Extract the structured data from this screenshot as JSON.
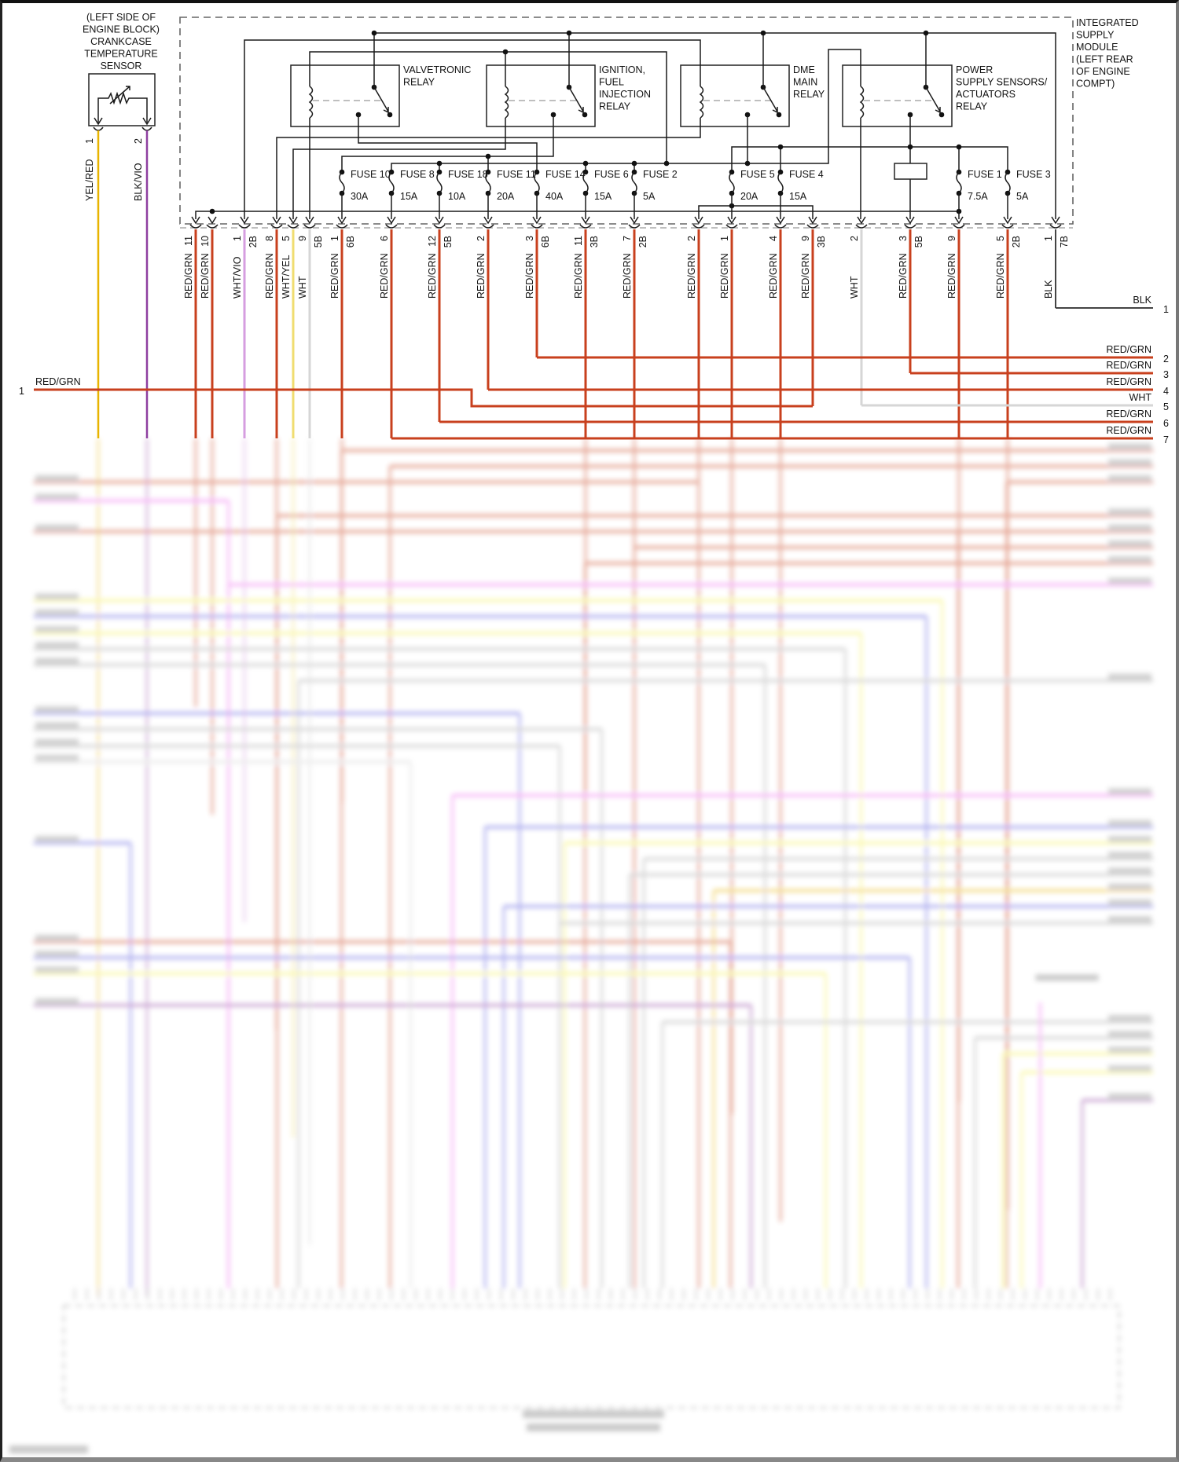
{
  "sensor": {
    "label_lines": [
      "(LEFT SIDE OF",
      "ENGINE BLOCK)",
      "CRANKCASE",
      "TEMPERATURE",
      "SENSOR"
    ],
    "pins": [
      {
        "num": "1",
        "wire": "YEL/RED"
      },
      {
        "num": "2",
        "wire": "BLK/VIO"
      }
    ]
  },
  "module": {
    "label_lines": [
      "INTEGRATED",
      "SUPPLY",
      "MODULE",
      "(LEFT REAR",
      "OF ENGINE",
      "COMPT)"
    ]
  },
  "relays": [
    {
      "label_lines": [
        "VALVETRONIC",
        "RELAY"
      ]
    },
    {
      "label_lines": [
        "IGNITION,",
        "FUEL",
        "INJECTION",
        "RELAY"
      ]
    },
    {
      "label_lines": [
        "DME",
        "MAIN",
        "RELAY"
      ]
    },
    {
      "label_lines": [
        "POWER",
        "SUPPLY SENSORS/",
        "ACTUATORS",
        "RELAY"
      ]
    }
  ],
  "fuses": [
    {
      "name": "FUSE 10",
      "rating": "30A"
    },
    {
      "name": "FUSE 8",
      "rating": "15A"
    },
    {
      "name": "FUSE 18",
      "rating": "10A"
    },
    {
      "name": "FUSE 11",
      "rating": "20A"
    },
    {
      "name": "FUSE 14",
      "rating": "40A"
    },
    {
      "name": "FUSE 6",
      "rating": "15A"
    },
    {
      "name": "FUSE 2",
      "rating": "5A"
    },
    {
      "name": "FUSE 5",
      "rating": "20A"
    },
    {
      "name": "FUSE 4",
      "rating": "15A"
    },
    {
      "name": "FUSE 1",
      "rating": "7.5A"
    },
    {
      "name": "FUSE 3",
      "rating": "5A"
    }
  ],
  "connector_pins": [
    {
      "num": "11",
      "suffix": "",
      "wire": "RED/GRN"
    },
    {
      "num": "10",
      "suffix": "",
      "wire": "RED/GRN"
    },
    {
      "num": "1",
      "suffix": "2B",
      "wire": "WHT/VIO"
    },
    {
      "num": "8",
      "suffix": "",
      "wire": "RED/GRN"
    },
    {
      "num": "5",
      "suffix": "",
      "wire": "WHT/YEL"
    },
    {
      "num": "9",
      "suffix": "5B",
      "wire": "WHT"
    },
    {
      "num": "1",
      "suffix": "6B",
      "wire": "RED/GRN"
    },
    {
      "num": "6",
      "suffix": "",
      "wire": "RED/GRN"
    },
    {
      "num": "12",
      "suffix": "5B",
      "wire": "RED/GRN"
    },
    {
      "num": "2",
      "suffix": "",
      "wire": "RED/GRN"
    },
    {
      "num": "3",
      "suffix": "6B",
      "wire": "RED/GRN"
    },
    {
      "num": "11",
      "suffix": "3B",
      "wire": "RED/GRN"
    },
    {
      "num": "7",
      "suffix": "2B",
      "wire": "RED/GRN"
    },
    {
      "num": "2",
      "suffix": "",
      "wire": "RED/GRN"
    },
    {
      "num": "1",
      "suffix": "",
      "wire": "RED/GRN"
    },
    {
      "num": "4",
      "suffix": "",
      "wire": "RED/GRN"
    },
    {
      "num": "9",
      "suffix": "3B",
      "wire": "RED/GRN"
    },
    {
      "num": "2",
      "suffix": "",
      "wire": "WHT"
    },
    {
      "num": "3",
      "suffix": "5B",
      "wire": "RED/GRN"
    },
    {
      "num": "9",
      "suffix": "",
      "wire": "RED/GRN"
    },
    {
      "num": "5",
      "suffix": "2B",
      "wire": "RED/GRN"
    },
    {
      "num": "1",
      "suffix": "7B",
      "wire": "BLK"
    }
  ],
  "right_wires": [
    {
      "num": "1",
      "label": "BLK"
    },
    {
      "num": "2",
      "label": "RED/GRN"
    },
    {
      "num": "3",
      "label": "RED/GRN"
    },
    {
      "num": "4",
      "label": "RED/GRN"
    },
    {
      "num": "5",
      "label": "WHT"
    },
    {
      "num": "6",
      "label": "RED/GRN"
    },
    {
      "num": "7",
      "label": "RED/GRN"
    }
  ],
  "left_wires": [
    {
      "num": "1",
      "label": "RED/GRN"
    }
  ],
  "wire_colors": {
    "RED/GRN": "#c8401e",
    "WHT/VIO": "#d69ee0",
    "WHT/YEL": "#f0dd70",
    "WHT": "#d6d6d6",
    "YEL/RED": "#e8b400",
    "BLK/VIO": "#8e3fa0",
    "BLK": "#444444",
    "BLU": "#5555dd",
    "PNK": "#ee66ee",
    "YEL": "#f4f050",
    "GRY": "#a8a8a8"
  }
}
